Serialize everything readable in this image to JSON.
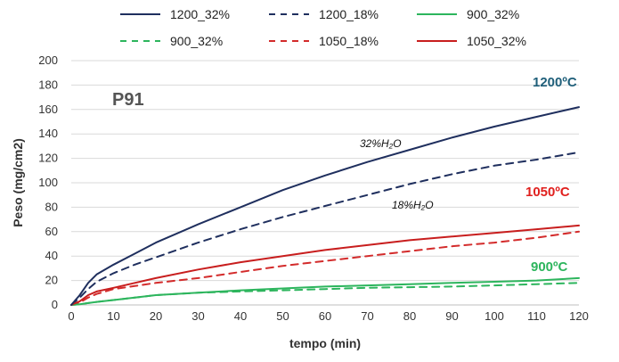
{
  "chart_data": {
    "type": "line",
    "title": "",
    "panel_label": "P91",
    "xlabel": "tempo (min)",
    "ylabel": "Peso (mg/cm2)",
    "xlim": [
      0,
      120
    ],
    "ylim": [
      0,
      200
    ],
    "x_ticks": [
      0,
      10,
      20,
      30,
      40,
      50,
      60,
      70,
      80,
      90,
      100,
      110,
      120
    ],
    "y_ticks": [
      0,
      20,
      40,
      60,
      80,
      100,
      120,
      140,
      160,
      180,
      200
    ],
    "grid": "horizontal",
    "legend_position": "top",
    "x": [
      0,
      2,
      4,
      6,
      10,
      15,
      20,
      30,
      40,
      50,
      60,
      70,
      80,
      90,
      100,
      110,
      120
    ],
    "series": [
      {
        "name": "1200_32%",
        "color": "#1f2f5e",
        "dash": "solid",
        "values": [
          0,
          8,
          18,
          25,
          33,
          42,
          51,
          66,
          80,
          94,
          106,
          117,
          127,
          137,
          146,
          154,
          162
        ]
      },
      {
        "name": "1200_18%",
        "color": "#1f2f5e",
        "dash": "dashed",
        "values": [
          0,
          6,
          13,
          19,
          26,
          33,
          39,
          51,
          62,
          72,
          81,
          90,
          99,
          107,
          114,
          119,
          125
        ]
      },
      {
        "name": "900_32%",
        "color": "#2db55d",
        "dash": "solid",
        "values": [
          0,
          0.5,
          1.5,
          2.5,
          4,
          6,
          8,
          10,
          12,
          13.5,
          15,
          16,
          17,
          18,
          19,
          20,
          22
        ]
      },
      {
        "name": "900_32%",
        "color": "#2db55d",
        "dash": "dashed",
        "values": [
          0,
          0.5,
          1.5,
          2.5,
          4,
          6,
          8,
          10,
          11,
          12,
          13,
          14,
          14.5,
          15,
          16,
          17,
          18
        ]
      },
      {
        "name": "1050_18%",
        "color": "#d32b2b",
        "dash": "dashed",
        "values": [
          0,
          2,
          6,
          9,
          13,
          15.5,
          18,
          22,
          27,
          32,
          36,
          40,
          44,
          48,
          51,
          55,
          60
        ]
      },
      {
        "name": "1050_32%",
        "color": "#c81e1e",
        "dash": "solid",
        "values": [
          0,
          3,
          8,
          11,
          14,
          18,
          22,
          29,
          35,
          40,
          45,
          49,
          53,
          56,
          59,
          62,
          65
        ]
      }
    ],
    "annotations": [
      {
        "text": "1200ºC",
        "color": "#1f5f7a"
      },
      {
        "text": "1050ºC",
        "color": "#e0201e"
      },
      {
        "text": "900ºC",
        "color": "#2db55d"
      },
      {
        "text": "32%H₂O",
        "color": "#111111"
      },
      {
        "text": "18%H₂O",
        "color": "#111111"
      }
    ]
  }
}
